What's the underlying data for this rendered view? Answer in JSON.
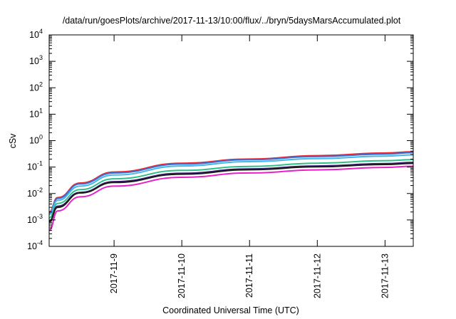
{
  "chart_data": {
    "type": "line",
    "title": "/data/run/goesPlots/archive/2017-11-13/10:00/flux/../bryn/5daysMarsAccumulated.plot",
    "xlabel": "Coordinated Universal Time (UTC)",
    "ylabel": "cSv",
    "x_scale": "time",
    "y_scale": "log",
    "xlim": [
      "2017-11-08T01:00",
      "2017-11-13T10:00"
    ],
    "ylim": [
      0.0001,
      10000
    ],
    "x_ticks": [
      "2017-11-9",
      "2017-11-10",
      "2017-11-11",
      "2017-11-12",
      "2017-11-13"
    ],
    "y_ticks": [
      {
        "base": "10",
        "exp": "-4"
      },
      {
        "base": "10",
        "exp": "-3"
      },
      {
        "base": "10",
        "exp": "-2"
      },
      {
        "base": "10",
        "exp": "-1"
      },
      {
        "base": "10",
        "exp": "0"
      },
      {
        "base": "10",
        "exp": "1"
      },
      {
        "base": "10",
        "exp": "2"
      },
      {
        "base": "10",
        "exp": "3"
      },
      {
        "base": "10",
        "exp": "4"
      }
    ],
    "grid": false,
    "legend": "none",
    "series": [
      {
        "color": "#e8262b",
        "x": [
          "2017-11-08T01:00",
          "2017-11-08T04:00",
          "2017-11-08T12:00",
          "2017-11-09T00:00",
          "2017-11-10T00:00",
          "2017-11-11T00:00",
          "2017-11-12T00:00",
          "2017-11-13T00:00",
          "2017-11-13T10:00"
        ],
        "y": [
          0.002,
          0.007,
          0.025,
          0.065,
          0.14,
          0.2,
          0.27,
          0.34,
          0.38
        ]
      },
      {
        "color": "#3b6fd8",
        "x": [
          "2017-11-08T01:00",
          "2017-11-08T04:00",
          "2017-11-08T12:00",
          "2017-11-09T00:00",
          "2017-11-10T00:00",
          "2017-11-11T00:00",
          "2017-11-12T00:00",
          "2017-11-13T00:00",
          "2017-11-13T10:00"
        ],
        "y": [
          0.0018,
          0.0065,
          0.023,
          0.06,
          0.13,
          0.19,
          0.25,
          0.31,
          0.35
        ]
      },
      {
        "color": "#45b6e8",
        "x": [
          "2017-11-08T01:00",
          "2017-11-08T04:00",
          "2017-11-08T12:00",
          "2017-11-09T00:00",
          "2017-11-10T00:00",
          "2017-11-11T00:00",
          "2017-11-12T00:00",
          "2017-11-13T00:00",
          "2017-11-13T10:00"
        ],
        "y": [
          0.0016,
          0.0055,
          0.019,
          0.05,
          0.11,
          0.16,
          0.21,
          0.26,
          0.29
        ]
      },
      {
        "color": "#2fbf8a",
        "x": [
          "2017-11-08T01:00",
          "2017-11-08T04:00",
          "2017-11-08T12:00",
          "2017-11-09T00:00",
          "2017-11-10T00:00",
          "2017-11-11T00:00",
          "2017-11-12T00:00",
          "2017-11-13T00:00",
          "2017-11-13T10:00"
        ],
        "y": [
          0.0012,
          0.0042,
          0.014,
          0.036,
          0.075,
          0.105,
          0.14,
          0.175,
          0.19
        ]
      },
      {
        "color": "#3a1b6e",
        "x": [
          "2017-11-08T01:00",
          "2017-11-08T04:00",
          "2017-11-08T12:00",
          "2017-11-09T00:00",
          "2017-11-10T00:00",
          "2017-11-11T00:00",
          "2017-11-12T00:00",
          "2017-11-13T00:00",
          "2017-11-13T10:00"
        ],
        "y": [
          0.0009,
          0.0033,
          0.011,
          0.028,
          0.058,
          0.085,
          0.11,
          0.135,
          0.15
        ]
      },
      {
        "color": "#1a1a1a",
        "x": [
          "2017-11-08T01:00",
          "2017-11-08T04:00",
          "2017-11-08T12:00",
          "2017-11-09T00:00",
          "2017-11-10T00:00",
          "2017-11-11T00:00",
          "2017-11-12T00:00",
          "2017-11-13T00:00",
          "2017-11-13T10:00"
        ],
        "y": [
          0.00085,
          0.003,
          0.0105,
          0.026,
          0.054,
          0.079,
          0.102,
          0.125,
          0.138
        ]
      },
      {
        "color": "#e820c8",
        "x": [
          "2017-11-08T01:00",
          "2017-11-08T04:00",
          "2017-11-08T12:00",
          "2017-11-09T00:00",
          "2017-11-10T00:00",
          "2017-11-11T00:00",
          "2017-11-12T00:00",
          "2017-11-13T00:00",
          "2017-11-13T10:00"
        ],
        "y": [
          0.0004,
          0.0022,
          0.0075,
          0.019,
          0.041,
          0.06,
          0.078,
          0.097,
          0.108
        ]
      }
    ]
  }
}
